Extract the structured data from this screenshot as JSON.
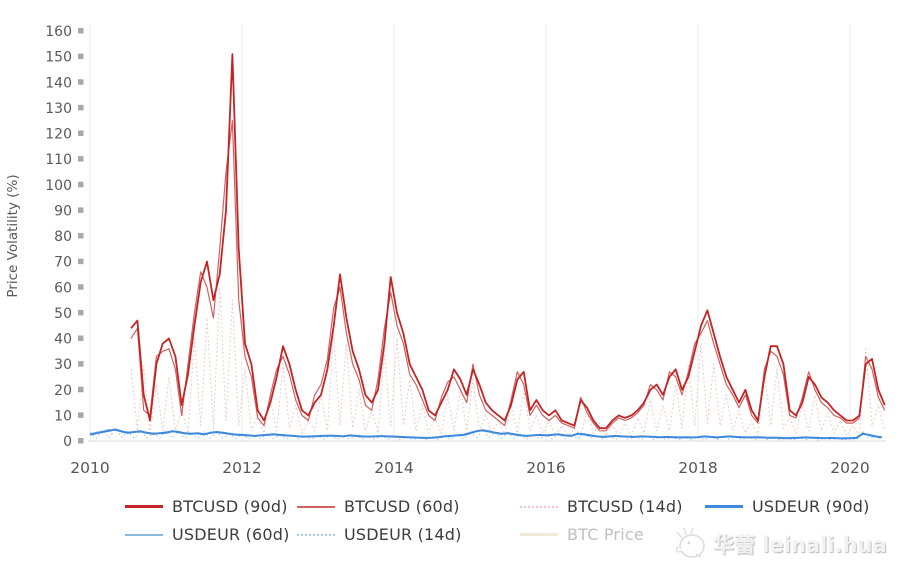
{
  "watermark": {
    "text": "华蕾 leinali.hua",
    "icon": "chick-face-icon"
  },
  "legend": {
    "rows": [
      [
        0,
        1,
        2,
        3
      ],
      [
        4,
        5,
        6
      ]
    ]
  },
  "chart_data": {
    "type": "line",
    "title": "",
    "xlabel": "",
    "ylabel": "Price Volatility (%)",
    "ylim": [
      0,
      160
    ],
    "xlim": [
      2010,
      2020.5
    ],
    "y_ticks": [
      0,
      10,
      20,
      30,
      40,
      50,
      60,
      70,
      80,
      90,
      100,
      110,
      120,
      130,
      140,
      150,
      160
    ],
    "x_ticks": [
      2010,
      2012,
      2014,
      2016,
      2018,
      2020
    ],
    "grid": "vertical-only",
    "legend_position": "bottom",
    "axis_colors": {
      "tick_text": "#58595b",
      "tick_square": "#a8a8a8",
      "gridline": "#ededed",
      "axis_line": "#d9d9d9"
    },
    "series": [
      {
        "name": "BTCUSD (90d)",
        "color": "#c32424",
        "line_width": 1.8,
        "dash": "solid",
        "visible": true,
        "x_start": 2010.54,
        "x_step": 0.083333,
        "values": [
          44,
          47,
          18,
          8,
          30,
          38,
          40,
          33,
          14,
          26,
          45,
          62,
          70,
          55,
          65,
          90,
          151,
          75,
          38,
          30,
          12,
          8,
          15,
          25,
          37,
          30,
          20,
          12,
          10,
          15,
          18,
          28,
          45,
          65,
          48,
          35,
          28,
          18,
          15,
          20,
          38,
          64,
          50,
          42,
          30,
          25,
          20,
          12,
          10,
          15,
          20,
          28,
          24,
          18,
          28,
          22,
          15,
          12,
          10,
          8,
          14,
          24,
          27,
          12,
          16,
          12,
          10,
          12,
          8,
          7,
          6,
          16,
          13,
          8,
          5,
          5,
          8,
          10,
          9,
          10,
          12,
          15,
          20,
          22,
          18,
          25,
          28,
          20,
          25,
          35,
          45,
          51,
          42,
          33,
          25,
          20,
          15,
          20,
          12,
          8,
          25,
          37,
          37,
          30,
          12,
          10,
          15,
          25,
          22,
          17,
          15,
          12,
          10,
          8,
          8,
          10,
          30,
          32,
          20,
          14
        ]
      },
      {
        "name": "BTCUSD (60d)",
        "color": "#d16060",
        "line_width": 1.2,
        "dash": "solid",
        "visible": true,
        "x_start": 2010.54,
        "x_step": 0.083333,
        "values": [
          40,
          44,
          12,
          10,
          33,
          35,
          36,
          28,
          10,
          30,
          50,
          66,
          60,
          48,
          75,
          105,
          125,
          55,
          33,
          25,
          9,
          6,
          18,
          28,
          33,
          26,
          16,
          10,
          8,
          18,
          22,
          32,
          52,
          60,
          42,
          30,
          24,
          14,
          12,
          24,
          44,
          58,
          45,
          38,
          26,
          22,
          16,
          10,
          8,
          17,
          23,
          25,
          20,
          15,
          30,
          18,
          12,
          10,
          8,
          6,
          16,
          27,
          22,
          10,
          14,
          10,
          8,
          10,
          7,
          6,
          5,
          17,
          11,
          7,
          4,
          4,
          7,
          9,
          8,
          9,
          11,
          14,
          22,
          20,
          16,
          27,
          25,
          18,
          27,
          38,
          42,
          47,
          38,
          30,
          22,
          18,
          13,
          18,
          10,
          7,
          28,
          35,
          33,
          26,
          10,
          9,
          17,
          27,
          20,
          15,
          13,
          10,
          9,
          7,
          7,
          9,
          33,
          28,
          17,
          12
        ]
      },
      {
        "name": "BTCUSD (14d)",
        "color": "#ecc5c5",
        "line_width": 1.1,
        "dash": "dot",
        "visible": true,
        "x_start": 2010.54,
        "x_step": 0.083333,
        "values": [
          28,
          4,
          30,
          3,
          22,
          4,
          25,
          4,
          12,
          3,
          40,
          6,
          48,
          5,
          60,
          8,
          55,
          6,
          28,
          4,
          10,
          3,
          16,
          4,
          30,
          5,
          14,
          3,
          8,
          4,
          18,
          4,
          42,
          6,
          38,
          5,
          20,
          4,
          12,
          3,
          35,
          6,
          40,
          6,
          24,
          4,
          14,
          3,
          9,
          3,
          18,
          4,
          20,
          4,
          24,
          4,
          10,
          3,
          8,
          2,
          14,
          3,
          20,
          4,
          10,
          3,
          8,
          2,
          6,
          2,
          5,
          2,
          12,
          3,
          7,
          2,
          6,
          2,
          7,
          2,
          9,
          3,
          16,
          4,
          14,
          4,
          22,
          5,
          30,
          6,
          38,
          7,
          30,
          6,
          18,
          4,
          12,
          3,
          8,
          2,
          28,
          6,
          28,
          5,
          9,
          3,
          14,
          4,
          18,
          4,
          11,
          3,
          8,
          2,
          6,
          2,
          36,
          6,
          14,
          4
        ]
      },
      {
        "name": "USDEUR (90d)",
        "color": "#3c89dd",
        "line_width": 2.0,
        "dash": "solid",
        "visible": true,
        "x_start": 2010.0,
        "x_step": 0.083333,
        "values": [
          2.5,
          3,
          3.5,
          4,
          4.5,
          3.8,
          3.2,
          3.5,
          3.8,
          3.2,
          2.8,
          3,
          3.2,
          3.8,
          3.5,
          3,
          2.8,
          3,
          2.6,
          3.2,
          3.5,
          3.2,
          2.8,
          2.5,
          2.4,
          2.2,
          2,
          2.2,
          2.4,
          2.6,
          2.4,
          2.2,
          2,
          1.8,
          1.7,
          1.8,
          1.9,
          2,
          2.1,
          2,
          1.8,
          2.2,
          2,
          1.8,
          1.7,
          1.8,
          1.9,
          1.8,
          1.7,
          1.6,
          1.5,
          1.4,
          1.3,
          1.2,
          1.3,
          1.5,
          1.8,
          2,
          2.2,
          2.4,
          3,
          3.8,
          4.2,
          3.8,
          3.2,
          2.8,
          3,
          2.6,
          2.2,
          2,
          2.2,
          2.4,
          2.2,
          2.4,
          2.6,
          2.2,
          2,
          2.8,
          2.6,
          2.2,
          1.8,
          1.6,
          1.8,
          2,
          1.8,
          1.7,
          1.6,
          1.8,
          1.7,
          1.6,
          1.5,
          1.6,
          1.5,
          1.4,
          1.5,
          1.4,
          1.5,
          1.8,
          1.6,
          1.4,
          1.6,
          1.8,
          1.6,
          1.5,
          1.4,
          1.5,
          1.4,
          1.3,
          1.3,
          1.2,
          1.1,
          1.2,
          1.3,
          1.4,
          1.3,
          1.2,
          1.1,
          1.2,
          1.1,
          1,
          1.1,
          1.2,
          2.8,
          2.4,
          1.8,
          1.5
        ]
      },
      {
        "name": "USDEUR (60d)",
        "color": "#8cb8de",
        "line_width": 1.2,
        "dash": "solid",
        "visible": true,
        "x_start": 2010.0,
        "x_step": 0.083333,
        "values": [
          2.8,
          3.4,
          3.8,
          4.5,
          4.2,
          3.5,
          3,
          3.8,
          3.5,
          3,
          2.6,
          3.2,
          3.5,
          4,
          3.2,
          2.8,
          3,
          2.8,
          2.4,
          3.4,
          3.2,
          3,
          2.6,
          2.4,
          2.2,
          2,
          1.9,
          2.3,
          2.5,
          2.4,
          2.2,
          2,
          1.9,
          1.7,
          1.6,
          1.9,
          2,
          2.1,
          2,
          1.9,
          1.9,
          2.1,
          1.9,
          1.7,
          1.6,
          1.9,
          2,
          1.7,
          1.6,
          1.5,
          1.4,
          1.3,
          1.2,
          1.1,
          1.4,
          1.6,
          1.9,
          2.1,
          2.3,
          2.6,
          3.4,
          4,
          3.9,
          3.5,
          3,
          2.6,
          3.2,
          2.4,
          2.1,
          1.9,
          2.3,
          2.2,
          2.1,
          2.5,
          2.4,
          2.1,
          1.9,
          3,
          2.4,
          2,
          1.7,
          1.5,
          1.9,
          1.8,
          1.7,
          1.6,
          1.5,
          1.7,
          1.6,
          1.5,
          1.4,
          1.5,
          1.4,
          1.3,
          1.4,
          1.3,
          1.4,
          1.7,
          1.5,
          1.3,
          1.5,
          1.7,
          1.5,
          1.4,
          1.3,
          1.4,
          1.3,
          1.2,
          1.2,
          1.1,
          1,
          1.1,
          1.2,
          1.3,
          1.2,
          1.1,
          1,
          1.1,
          1,
          0.9,
          1,
          1.1,
          3.2,
          2.2,
          1.6,
          1.4
        ]
      },
      {
        "name": "USDEUR (14d)",
        "color": "#a9c7e8",
        "line_width": 1.1,
        "dash": "dot",
        "visible": true,
        "x_start": 2010.0,
        "x_step": 0.083333,
        "values": [
          3.5,
          1,
          4.2,
          1.2,
          4.8,
          1.5,
          3.8,
          1,
          4,
          1.2,
          3.2,
          1,
          4,
          1.2,
          3.5,
          1,
          3.2,
          1,
          3.6,
          1.1,
          3.4,
          1,
          2.8,
          0.9,
          2.6,
          0.8,
          2.4,
          0.8,
          2.8,
          0.9,
          2.5,
          0.8,
          2.2,
          0.7,
          2,
          0.7,
          2.2,
          0.7,
          2.3,
          0.7,
          2.4,
          0.8,
          2.2,
          0.7,
          2,
          0.6,
          2.2,
          0.7,
          1.9,
          0.6,
          1.7,
          0.5,
          1.5,
          0.5,
          1.6,
          0.5,
          2.1,
          0.7,
          2.6,
          0.8,
          3.8,
          1.2,
          4.5,
          1.4,
          3.6,
          1.1,
          3.4,
          1,
          2.6,
          0.8,
          2.6,
          0.8,
          2.5,
          0.8,
          2.8,
          0.9,
          2.4,
          0.7,
          3.2,
          1,
          2.4,
          0.7,
          2.1,
          0.6,
          2,
          0.6,
          1.9,
          0.6,
          1.9,
          0.6,
          1.7,
          0.5,
          1.7,
          0.5,
          1.6,
          0.5,
          1.7,
          0.5,
          1.8,
          0.6,
          1.9,
          0.6,
          1.7,
          0.5,
          1.6,
          0.5,
          1.5,
          0.5,
          1.4,
          0.4,
          1.3,
          0.4,
          1.5,
          0.5,
          1.4,
          0.4,
          1.3,
          0.4,
          1.2,
          0.4,
          1.2,
          0.4,
          3.6,
          1.1,
          1.9,
          0.6
        ]
      },
      {
        "name": "BTC Price",
        "color": "#efe9d6",
        "line_width": 2.0,
        "dash": "solid",
        "visible": false,
        "x_start": 2010.0,
        "x_step": 0.083333,
        "values": []
      }
    ]
  }
}
